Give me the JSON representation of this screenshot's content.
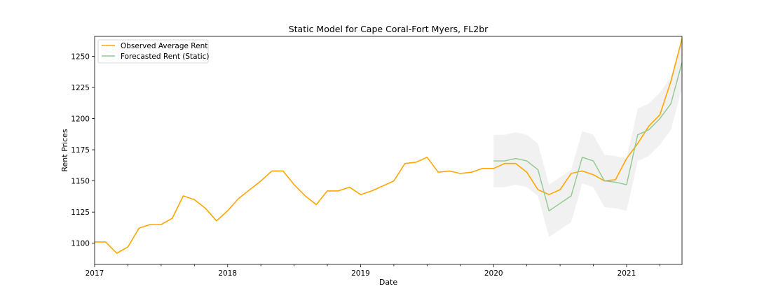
{
  "chart_data": {
    "type": "line",
    "title": "Static Model for Cape Coral-Fort Myers, FL2br",
    "xlabel": "Date",
    "ylabel": "Rent Prices",
    "x_ticks": [
      "2017",
      "2018",
      "2019",
      "2020",
      "2021"
    ],
    "y_ticks": [
      1100,
      1125,
      1150,
      1175,
      1200,
      1225,
      1250
    ],
    "xlim": [
      "2017-01",
      "2021-06"
    ],
    "ylim": [
      1083,
      1266
    ],
    "grid": false,
    "legend_placement": "top-left",
    "series": [
      {
        "name": "Observed Average Rent",
        "color": "#ffa500",
        "x": [
          "2017-01",
          "2017-02",
          "2017-03",
          "2017-04",
          "2017-05",
          "2017-06",
          "2017-07",
          "2017-08",
          "2017-09",
          "2017-10",
          "2017-11",
          "2017-12",
          "2018-01",
          "2018-02",
          "2018-03",
          "2018-04",
          "2018-05",
          "2018-06",
          "2018-07",
          "2018-08",
          "2018-09",
          "2018-10",
          "2018-11",
          "2018-12",
          "2019-01",
          "2019-02",
          "2019-03",
          "2019-04",
          "2019-05",
          "2019-06",
          "2019-07",
          "2019-08",
          "2019-09",
          "2019-10",
          "2019-11",
          "2019-12",
          "2020-01",
          "2020-02",
          "2020-03",
          "2020-04",
          "2020-05",
          "2020-06",
          "2020-07",
          "2020-08",
          "2020-09",
          "2020-10",
          "2020-11",
          "2020-12",
          "2021-01",
          "2021-02",
          "2021-03",
          "2021-04",
          "2021-05",
          "2021-06"
        ],
        "values": [
          1101,
          1101,
          1092,
          1097,
          1112,
          1115,
          1115,
          1120,
          1138,
          1135,
          1128,
          1118,
          1126,
          1136,
          1143,
          1150,
          1158,
          1158,
          1147,
          1138,
          1131,
          1142,
          1142,
          1145,
          1139,
          1142,
          1146,
          1150,
          1164,
          1165,
          1169,
          1157,
          1158,
          1156,
          1157,
          1160,
          1160,
          1164,
          1164,
          1157,
          1143,
          1139,
          1143,
          1156,
          1158,
          1155,
          1150,
          1151,
          1168,
          1180,
          1194,
          1203,
          1230,
          1264
        ]
      },
      {
        "name": "Forecasted Rent (Static)",
        "color": "#8fc98f",
        "x": [
          "2020-01",
          "2020-02",
          "2020-03",
          "2020-04",
          "2020-05",
          "2020-06",
          "2020-07",
          "2020-08",
          "2020-09",
          "2020-10",
          "2020-11",
          "2020-12",
          "2021-01",
          "2021-02",
          "2021-03",
          "2021-04",
          "2021-05",
          "2021-06"
        ],
        "values": [
          1166,
          1166,
          1168,
          1166,
          1159,
          1126,
          1132,
          1138,
          1169,
          1166,
          1150,
          1149,
          1147,
          1187,
          1191,
          1200,
          1212,
          1245
        ],
        "lower": [
          1145,
          1145,
          1147,
          1145,
          1138,
          1105,
          1111,
          1117,
          1148,
          1145,
          1129,
          1128,
          1126,
          1166,
          1170,
          1179,
          1191,
          1224
        ],
        "upper": [
          1187,
          1187,
          1189,
          1187,
          1180,
          1147,
          1153,
          1159,
          1190,
          1187,
          1171,
          1170,
          1168,
          1208,
          1212,
          1221,
          1233,
          1266
        ]
      }
    ],
    "confidence_band_color": "#e6e6e6"
  }
}
